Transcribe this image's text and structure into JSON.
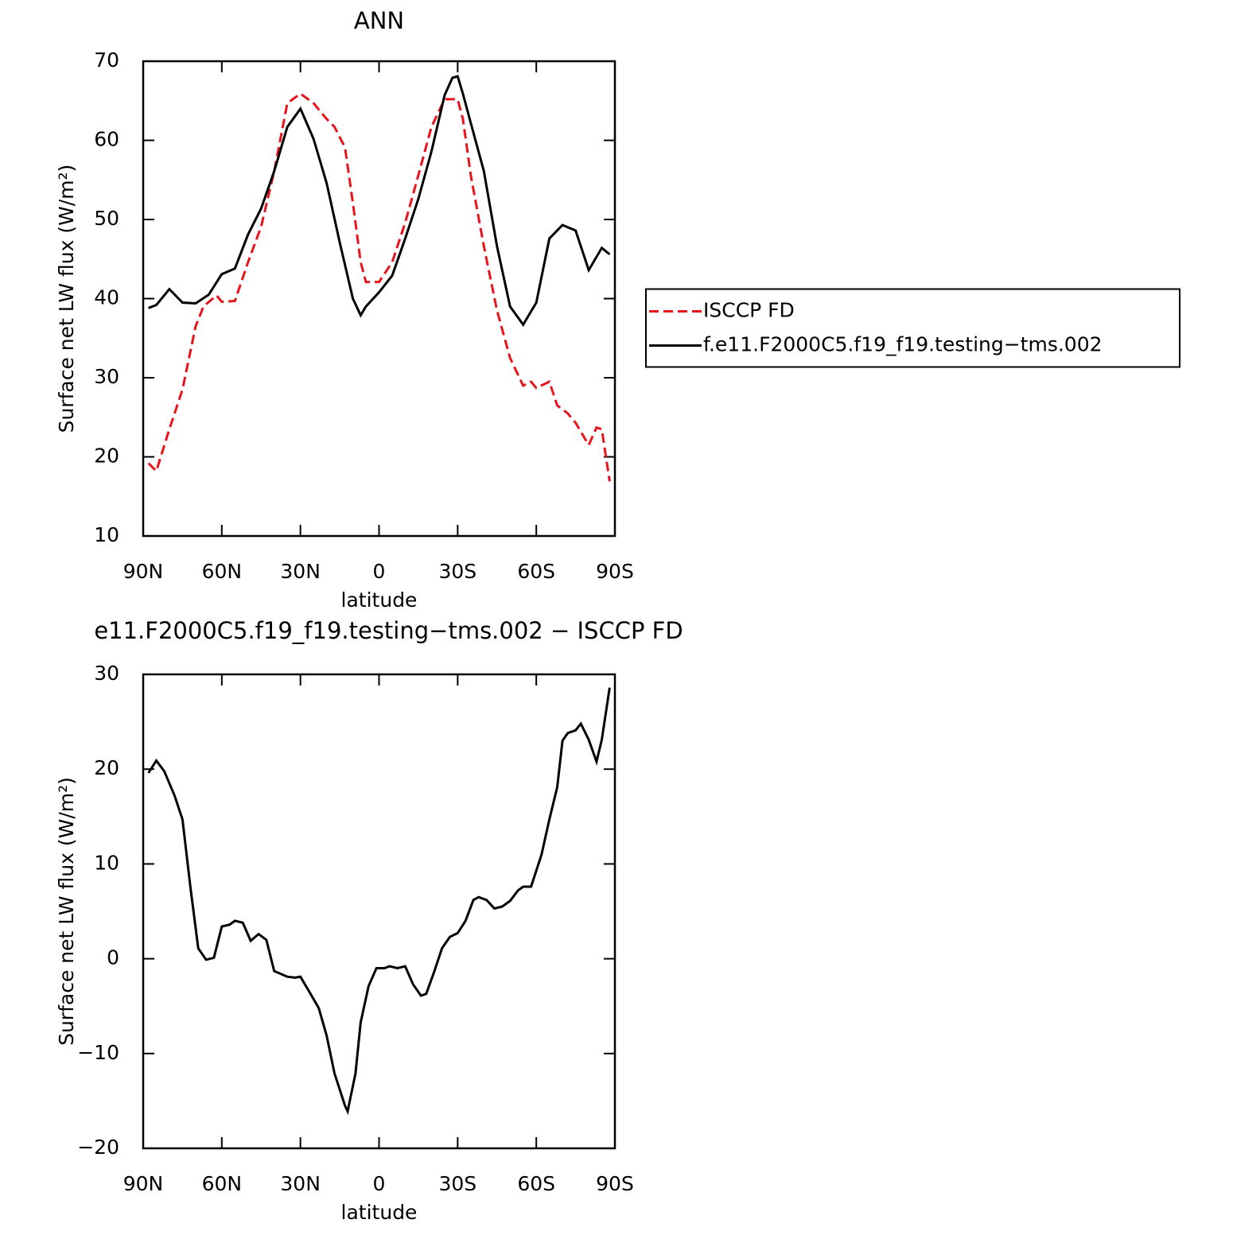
{
  "chart_data": [
    {
      "type": "line",
      "title": "ANN",
      "xlabel": "latitude",
      "ylabel": "Surface net LW flux (W/m²)",
      "xlim": [
        90,
        -90
      ],
      "xticks": [
        {
          "value": 90,
          "label": "90N"
        },
        {
          "value": 60,
          "label": "60N"
        },
        {
          "value": 30,
          "label": "30N"
        },
        0,
        {
          "value": -30,
          "label": "30S"
        },
        {
          "value": -60,
          "label": "60S"
        },
        {
          "value": -90,
          "label": "90S"
        }
      ],
      "ylim": [
        10,
        70
      ],
      "yticks": [
        10,
        20,
        30,
        40,
        50,
        60,
        70
      ],
      "legend": "right",
      "series": [
        {
          "name": "ISCCP FD",
          "color": "#e8141c",
          "dash": true,
          "x": [
            88,
            85,
            80,
            75,
            70,
            67,
            62,
            60,
            55,
            50,
            45,
            40,
            35,
            30,
            25,
            20,
            17,
            13,
            10,
            7,
            5,
            0,
            -5,
            -10,
            -15,
            -20,
            -25,
            -30,
            -32,
            -35,
            -40,
            -45,
            -50,
            -55,
            -58,
            -60,
            -65,
            -68,
            -72,
            -75,
            -80,
            -83,
            -85,
            -88
          ],
          "values": [
            19.2,
            18.2,
            23.5,
            28.5,
            36.5,
            39.0,
            40.4,
            39.6,
            39.7,
            44.6,
            49.1,
            56.1,
            64.7,
            65.9,
            64.7,
            62.7,
            61.7,
            59.1,
            52.1,
            44.6,
            42.1,
            42.1,
            44.6,
            49.6,
            55.6,
            61.7,
            65.2,
            65.2,
            62.7,
            55.6,
            46.6,
            38.5,
            32.5,
            29.0,
            29.5,
            28.7,
            29.5,
            26.5,
            25.5,
            24.3,
            21.5,
            23.7,
            23.5,
            16.9
          ]
        },
        {
          "name": "f.e11.F2000C5.f19_f19.testing−tms.002",
          "color": "#000000",
          "dash": false,
          "x": [
            88,
            85,
            80,
            75,
            70,
            65,
            60,
            55,
            50,
            45,
            40,
            35,
            30,
            25,
            20,
            15,
            10,
            7,
            5,
            0,
            -5,
            -10,
            -15,
            -20,
            -25,
            -28,
            -30,
            -32,
            -35,
            -40,
            -45,
            -50,
            -55,
            -60,
            -65,
            -70,
            -75,
            -80,
            -85,
            -88
          ],
          "values": [
            38.8,
            39.2,
            41.2,
            39.5,
            39.4,
            40.5,
            43.1,
            43.8,
            48.1,
            51.4,
            56.1,
            61.7,
            64.0,
            60.2,
            54.6,
            47.1,
            40.0,
            37.9,
            39.0,
            40.8,
            42.9,
            47.6,
            52.6,
            58.6,
            65.7,
            67.9,
            68.1,
            65.9,
            62.2,
            56.1,
            46.6,
            39.0,
            36.7,
            39.5,
            47.6,
            49.3,
            48.6,
            43.6,
            46.4,
            45.6
          ]
        }
      ]
    },
    {
      "type": "line",
      "title": "e11.F2000C5.f19_f19.testing−tms.002 − ISCCP FD",
      "xlabel": "latitude",
      "ylabel": "Surface net LW flux (W/m²)",
      "xlim": [
        90,
        -90
      ],
      "xticks": [
        {
          "value": 90,
          "label": "90N"
        },
        {
          "value": 60,
          "label": "60N"
        },
        {
          "value": 30,
          "label": "30N"
        },
        0,
        {
          "value": -30,
          "label": "30S"
        },
        {
          "value": -60,
          "label": "60S"
        },
        {
          "value": -90,
          "label": "90S"
        }
      ],
      "ylim": [
        -20,
        30
      ],
      "yticks": [
        {
          "value": -20,
          "label": "−20"
        },
        {
          "value": -10,
          "label": "−10"
        },
        0,
        10,
        20,
        30
      ],
      "series": [
        {
          "color": "#000000",
          "dash": false,
          "x": [
            88,
            85,
            82,
            78,
            75,
            72,
            69,
            66,
            63,
            60,
            57,
            55,
            52,
            49,
            46,
            43,
            40,
            35,
            32,
            30,
            27,
            23,
            20,
            17,
            13,
            12,
            9,
            7,
            4,
            1,
            -2,
            -4,
            -7,
            -10,
            -13,
            -16,
            -18,
            -21,
            -24,
            -27,
            -30,
            -33,
            -36,
            -38,
            -41,
            -44,
            -47,
            -50,
            -53,
            -55,
            -58,
            -62,
            -65,
            -68,
            -70,
            -72,
            -75,
            -77,
            -80,
            -83,
            -85,
            -88
          ],
          "values": [
            19.6,
            20.9,
            19.8,
            17.2,
            14.7,
            7.6,
            1.1,
            -0.1,
            0.1,
            3.4,
            3.6,
            4.0,
            3.8,
            1.9,
            2.6,
            2.0,
            -1.3,
            -1.9,
            -2.0,
            -1.9,
            -3.3,
            -5.2,
            -8.1,
            -12.1,
            -15.5,
            -16.1,
            -12.1,
            -6.7,
            -2.9,
            -1.0,
            -1.0,
            -0.8,
            -1.0,
            -0.8,
            -2.7,
            -3.9,
            -3.7,
            -1.4,
            1.1,
            2.3,
            2.7,
            4.0,
            6.2,
            6.5,
            6.2,
            5.3,
            5.5,
            6.1,
            7.2,
            7.6,
            7.6,
            11.0,
            14.7,
            18.1,
            23.0,
            23.8,
            24.1,
            24.8,
            23.1,
            20.8,
            23.1,
            28.6
          ]
        }
      ]
    }
  ]
}
